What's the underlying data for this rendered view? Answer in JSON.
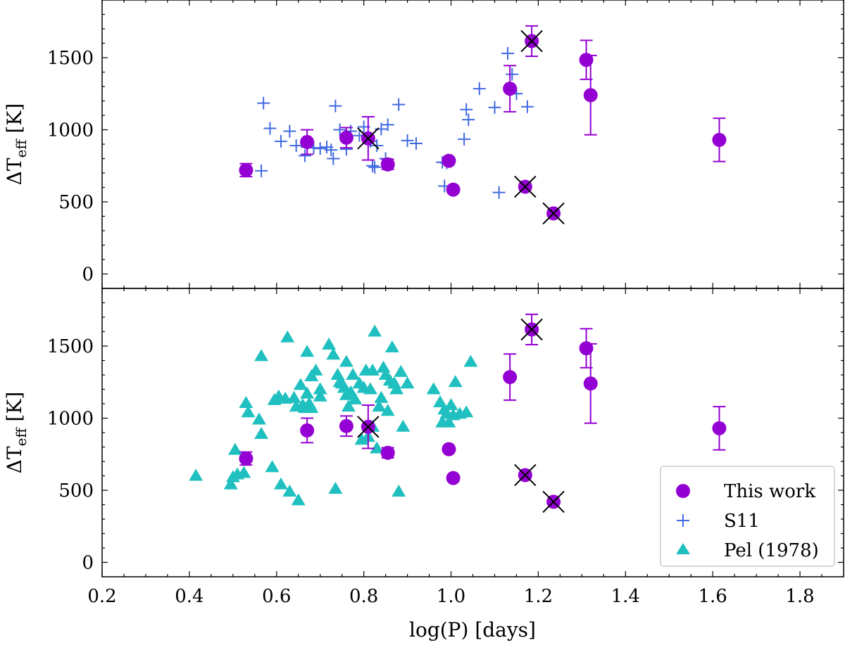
{
  "chart_data": {
    "type": "scatter",
    "xlabel": "log(P) [days]",
    "ylabel": "ΔT_eff [K]",
    "ylabel_main": "ΔT",
    "ylabel_sub": "eff",
    "ylabel_unit": " [K]",
    "xlim": [
      0.2,
      1.9
    ],
    "ylim": [
      -100,
      1900
    ],
    "x_ticks": [
      0.2,
      0.4,
      0.6,
      0.8,
      1.0,
      1.2,
      1.4,
      1.6,
      1.8
    ],
    "x_tick_labels": [
      "0.2",
      "0.4",
      "0.6",
      "0.8",
      "1.0",
      "1.2",
      "1.4",
      "1.6",
      "1.8"
    ],
    "y_ticks": [
      0,
      500,
      1000,
      1500
    ],
    "y_tick_labels": [
      "0",
      "500",
      "1000",
      "1500"
    ],
    "colors": {
      "this_work": "#9400d3",
      "s11": "#4169e1",
      "pel": "#20c0c0",
      "cross": "#000000"
    },
    "legend": {
      "placement": "bottom-right",
      "entries": [
        "This work",
        "S11",
        "Pel (1978)"
      ]
    },
    "panels": [
      {
        "name": "top",
        "series": [
          "This work",
          "S11"
        ]
      },
      {
        "name": "bottom",
        "series": [
          "This work",
          "Pel (1978)"
        ]
      }
    ],
    "this_work": [
      {
        "x": 0.53,
        "y": 720,
        "err": 45,
        "flag": false
      },
      {
        "x": 0.67,
        "y": 915,
        "err": 85,
        "flag": false
      },
      {
        "x": 0.76,
        "y": 945,
        "err": 70,
        "flag": false
      },
      {
        "x": 0.81,
        "y": 940,
        "err": 150,
        "flag": true
      },
      {
        "x": 0.855,
        "y": 760,
        "err": 35,
        "flag": false
      },
      {
        "x": 0.995,
        "y": 785,
        "err": 10,
        "flag": false
      },
      {
        "x": 1.005,
        "y": 585,
        "err": 10,
        "flag": false
      },
      {
        "x": 1.135,
        "y": 1285,
        "err": 160,
        "flag": false
      },
      {
        "x": 1.17,
        "y": 605,
        "err": 20,
        "flag": true
      },
      {
        "x": 1.185,
        "y": 1615,
        "err": 105,
        "flag": true
      },
      {
        "x": 1.235,
        "y": 420,
        "err": 15,
        "flag": true
      },
      {
        "x": 1.31,
        "y": 1485,
        "err": 135,
        "flag": false
      },
      {
        "x": 1.32,
        "y": 1240,
        "err": 275,
        "flag": false
      },
      {
        "x": 1.615,
        "y": 930,
        "err": 150,
        "flag": false
      }
    ],
    "s11": {
      "x": [
        0.565,
        0.57,
        0.585,
        0.61,
        0.63,
        0.645,
        0.665,
        0.67,
        0.685,
        0.7,
        0.715,
        0.725,
        0.73,
        0.735,
        0.745,
        0.76,
        0.77,
        0.79,
        0.8,
        0.815,
        0.82,
        0.825,
        0.83,
        0.84,
        0.85,
        0.855,
        0.88,
        0.9,
        0.92,
        0.98,
        0.985,
        0.99,
        1.03,
        1.035,
        1.04,
        1.065,
        1.1,
        1.11,
        1.13,
        1.14,
        1.15,
        1.175
      ],
      "y": [
        715,
        1185,
        1010,
        920,
        990,
        890,
        820,
        880,
        875,
        870,
        880,
        860,
        800,
        1165,
        1000,
        865,
        990,
        960,
        1020,
        920,
        750,
        740,
        890,
        1005,
        800,
        1035,
        1175,
        925,
        905,
        775,
        610,
        770,
        935,
        1140,
        1070,
        1285,
        1155,
        565,
        1530,
        1385,
        1250,
        1160
      ]
    },
    "pel": {
      "x": [
        0.415,
        0.495,
        0.5,
        0.505,
        0.51,
        0.525,
        0.53,
        0.535,
        0.56,
        0.565,
        0.565,
        0.59,
        0.595,
        0.605,
        0.61,
        0.62,
        0.625,
        0.63,
        0.64,
        0.645,
        0.65,
        0.655,
        0.66,
        0.665,
        0.67,
        0.67,
        0.675,
        0.68,
        0.68,
        0.69,
        0.7,
        0.7,
        0.72,
        0.73,
        0.735,
        0.74,
        0.745,
        0.75,
        0.755,
        0.76,
        0.76,
        0.765,
        0.77,
        0.775,
        0.78,
        0.79,
        0.795,
        0.8,
        0.805,
        0.81,
        0.815,
        0.82,
        0.82,
        0.825,
        0.83,
        0.835,
        0.84,
        0.845,
        0.85,
        0.855,
        0.86,
        0.865,
        0.87,
        0.875,
        0.88,
        0.885,
        0.89,
        0.9,
        0.96,
        0.975,
        0.98,
        0.985,
        0.99,
        0.995,
        1.0,
        1.005,
        1.01,
        1.02,
        1.035,
        1.045
      ],
      "y": [
        600,
        540,
        590,
        780,
        610,
        620,
        1105,
        1040,
        990,
        890,
        1430,
        660,
        1125,
        1150,
        540,
        1135,
        1560,
        490,
        1140,
        1080,
        430,
        1230,
        1090,
        1070,
        1460,
        1170,
        1100,
        1290,
        1070,
        1330,
        1200,
        1150,
        1510,
        1440,
        510,
        1300,
        1250,
        1240,
        1210,
        1390,
        1160,
        1080,
        1180,
        1300,
        1130,
        1240,
        850,
        1210,
        1330,
        870,
        1200,
        940,
        1330,
        1600,
        790,
        1080,
        1140,
        1350,
        1300,
        1050,
        1260,
        1490,
        1240,
        1200,
        490,
        1320,
        940,
        1240,
        1200,
        1110,
        970,
        1060,
        1030,
        970,
        1090,
        1020,
        1250,
        1030,
        1040,
        1390
      ]
    }
  }
}
